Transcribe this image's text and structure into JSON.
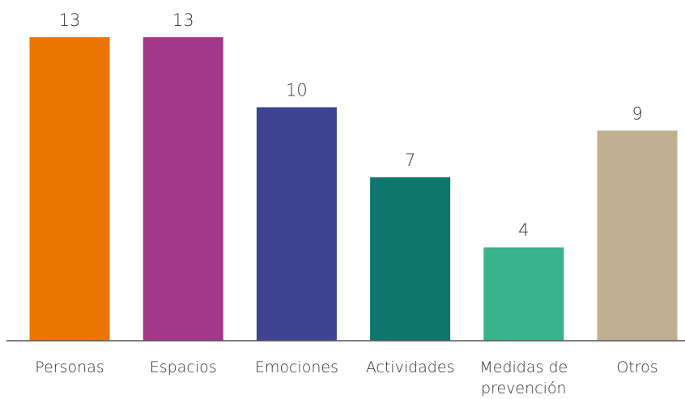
{
  "chart_data": {
    "type": "bar",
    "title": "",
    "xlabel": "",
    "ylabel": "",
    "ylim": [
      0,
      13
    ],
    "grid": false,
    "legend": "none",
    "categories": [
      [
        "Personas"
      ],
      [
        "Espacios"
      ],
      [
        "Emociones"
      ],
      [
        "Actividades"
      ],
      [
        "Medidas de",
        "prevención"
      ],
      [
        "Otros"
      ]
    ],
    "values": [
      13,
      13,
      10,
      7,
      4,
      9
    ],
    "colors": [
      "#EC7600",
      "#A5378A",
      "#3F4391",
      "#0F766E",
      "#38B38C",
      "#C0B092"
    ],
    "axis_color": "#555555"
  }
}
